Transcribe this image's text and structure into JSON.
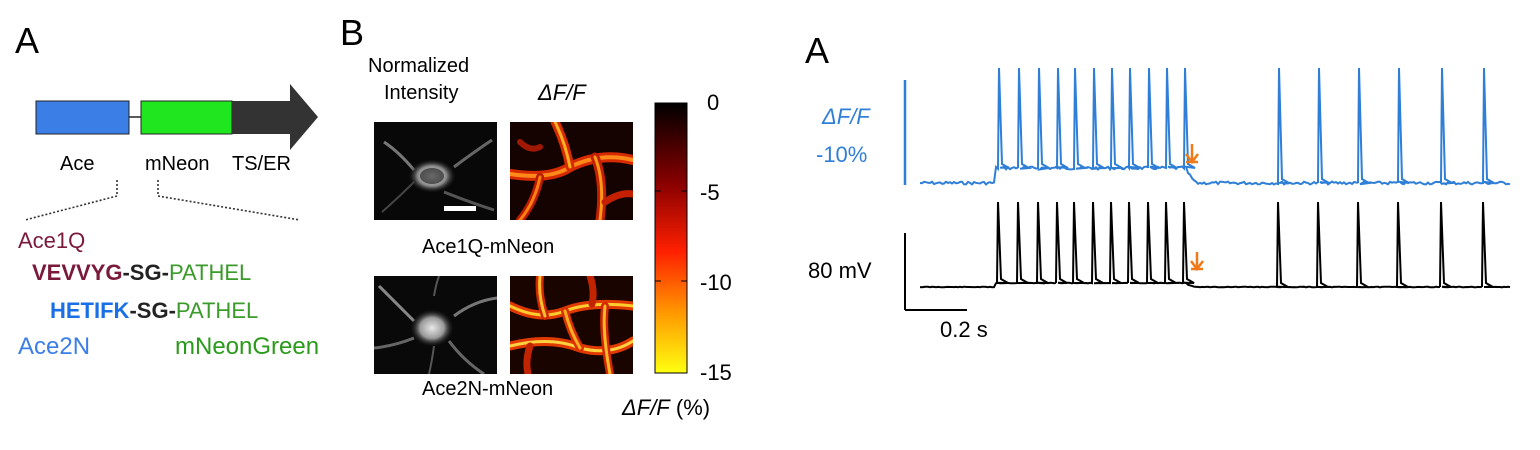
{
  "panelA": {
    "letter": "A",
    "construct_labels": [
      "Ace",
      "mNeon",
      "TS/ER"
    ],
    "colors": {
      "ace": "#3a7ee6",
      "mneon": "#1fe61f",
      "tser": "#333333"
    },
    "ace1q_label": "Ace1Q",
    "ace1q_seq": "VEVVYG",
    "ace2n_seq": "HETIFK",
    "linker": "-SG-",
    "pathel": "PATHEL",
    "ace2n_label": "Ace2N",
    "mneongreen_label": "mNeonGreen",
    "seq_colors": {
      "ace1q": "#7a1a3a",
      "ace2n": "#1a6fe6",
      "green": "#3a9a2a"
    }
  },
  "panelB": {
    "letter": "B",
    "col1_header_line1": "Normalized",
    "col1_header_line2": "Intensity",
    "col2_header": "ΔF/F",
    "row1_label": "Ace1Q-mNeon",
    "row2_label": "Ace2N-mNeon",
    "colorbar_ticks": [
      "0",
      "-5",
      "-10",
      "-15"
    ],
    "colorbar_label_italic": "ΔF/F",
    "colorbar_label_unit": " (%)"
  },
  "panelRight": {
    "letter": "A",
    "fluor_label_line1": "ΔF/F",
    "fluor_label_line2": "-10%",
    "voltage_label": "80 mV",
    "time_label": "0.2 s",
    "trace_colors": {
      "fluor": "#2f7fd6",
      "voltage": "#000000",
      "arrow": "#f07a1a"
    }
  }
}
